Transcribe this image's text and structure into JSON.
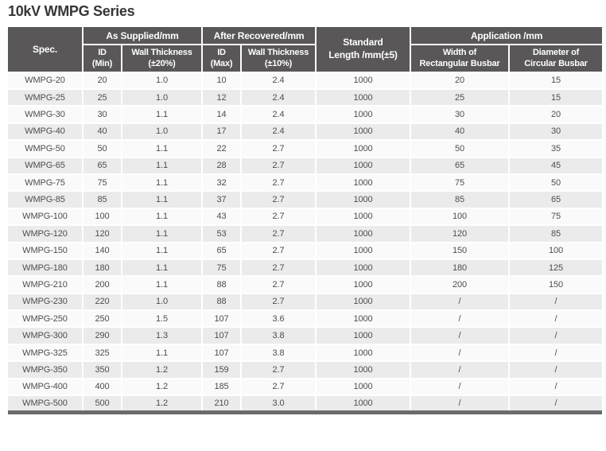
{
  "title": "10kV WMPG Series",
  "colors": {
    "header_background": "#595757",
    "header_text": "#ffffff",
    "row_base": "#fafafa",
    "row_alternate": "#ebebeb",
    "body_text": "#4d4d4d",
    "bottom_bar": "#6b6b6b",
    "title_text": "#363636"
  },
  "table": {
    "header": {
      "spec": "Spec.",
      "as_supplied": "As Supplied/mm",
      "after_recovered": "After Recovered/mm",
      "standard_line1": "Standard",
      "standard_line2": "Length /mm(±5)",
      "application": "Application /mm",
      "id_min_line1": "ID",
      "id_min_line2": "(Min)",
      "wall20_line1": "Wall Thickness",
      "wall20_line2": "(±20%)",
      "id_max_line1": "ID",
      "id_max_line2": "(Max)",
      "wall10_line1": "Wall Thickness",
      "wall10_line2": "(±10%)",
      "width_line1": "Width of",
      "width_line2": "Rectangular Busbar",
      "diameter_line1": "Diameter of",
      "diameter_line2": "Circular Busbar"
    },
    "rows": [
      {
        "spec": "WMPG-20",
        "id_min": "20",
        "wall_20": "1.0",
        "id_max": "10",
        "wall_10": "2.4",
        "std_length": "1000",
        "rect_width": "20",
        "circ_diameter": "15"
      },
      {
        "spec": "WMPG-25",
        "id_min": "25",
        "wall_20": "1.0",
        "id_max": "12",
        "wall_10": "2.4",
        "std_length": "1000",
        "rect_width": "25",
        "circ_diameter": "15"
      },
      {
        "spec": "WMPG-30",
        "id_min": "30",
        "wall_20": "1.1",
        "id_max": "14",
        "wall_10": "2.4",
        "std_length": "1000",
        "rect_width": "30",
        "circ_diameter": "20"
      },
      {
        "spec": "WMPG-40",
        "id_min": "40",
        "wall_20": "1.0",
        "id_max": "17",
        "wall_10": "2.4",
        "std_length": "1000",
        "rect_width": "40",
        "circ_diameter": "30"
      },
      {
        "spec": "WMPG-50",
        "id_min": "50",
        "wall_20": "1.1",
        "id_max": "22",
        "wall_10": "2.7",
        "std_length": "1000",
        "rect_width": "50",
        "circ_diameter": "35"
      },
      {
        "spec": "WMPG-65",
        "id_min": "65",
        "wall_20": "1.1",
        "id_max": "28",
        "wall_10": "2.7",
        "std_length": "1000",
        "rect_width": "65",
        "circ_diameter": "45"
      },
      {
        "spec": "WMPG-75",
        "id_min": "75",
        "wall_20": "1.1",
        "id_max": "32",
        "wall_10": "2.7",
        "std_length": "1000",
        "rect_width": "75",
        "circ_diameter": "50"
      },
      {
        "spec": "WMPG-85",
        "id_min": "85",
        "wall_20": "1.1",
        "id_max": "37",
        "wall_10": "2.7",
        "std_length": "1000",
        "rect_width": "85",
        "circ_diameter": "65"
      },
      {
        "spec": "WMPG-100",
        "id_min": "100",
        "wall_20": "1.1",
        "id_max": "43",
        "wall_10": "2.7",
        "std_length": "1000",
        "rect_width": "100",
        "circ_diameter": "75"
      },
      {
        "spec": "WMPG-120",
        "id_min": "120",
        "wall_20": "1.1",
        "id_max": "53",
        "wall_10": "2.7",
        "std_length": "1000",
        "rect_width": "120",
        "circ_diameter": "85"
      },
      {
        "spec": "WMPG-150",
        "id_min": "140",
        "wall_20": "1.1",
        "id_max": "65",
        "wall_10": "2.7",
        "std_length": "1000",
        "rect_width": "150",
        "circ_diameter": "100"
      },
      {
        "spec": "WMPG-180",
        "id_min": "180",
        "wall_20": "1.1",
        "id_max": "75",
        "wall_10": "2.7",
        "std_length": "1000",
        "rect_width": "180",
        "circ_diameter": "125"
      },
      {
        "spec": "WMPG-210",
        "id_min": "200",
        "wall_20": "1.1",
        "id_max": "88",
        "wall_10": "2.7",
        "std_length": "1000",
        "rect_width": "200",
        "circ_diameter": "150"
      },
      {
        "spec": "WMPG-230",
        "id_min": "220",
        "wall_20": "1.0",
        "id_max": "88",
        "wall_10": "2.7",
        "std_length": "1000",
        "rect_width": "/",
        "circ_diameter": "/"
      },
      {
        "spec": "WMPG-250",
        "id_min": "250",
        "wall_20": "1.5",
        "id_max": "107",
        "wall_10": "3.6",
        "std_length": "1000",
        "rect_width": "/",
        "circ_diameter": "/"
      },
      {
        "spec": "WMPG-300",
        "id_min": "290",
        "wall_20": "1.3",
        "id_max": "107",
        "wall_10": "3.8",
        "std_length": "1000",
        "rect_width": "/",
        "circ_diameter": "/"
      },
      {
        "spec": "WMPG-325",
        "id_min": "325",
        "wall_20": "1.1",
        "id_max": "107",
        "wall_10": "3.8",
        "std_length": "1000",
        "rect_width": "/",
        "circ_diameter": "/"
      },
      {
        "spec": "WMPG-350",
        "id_min": "350",
        "wall_20": "1.2",
        "id_max": "159",
        "wall_10": "2.7",
        "std_length": "1000",
        "rect_width": "/",
        "circ_diameter": "/"
      },
      {
        "spec": "WMPG-400",
        "id_min": "400",
        "wall_20": "1.2",
        "id_max": "185",
        "wall_10": "2.7",
        "std_length": "1000",
        "rect_width": "/",
        "circ_diameter": "/"
      },
      {
        "spec": "WMPG-500",
        "id_min": "500",
        "wall_20": "1.2",
        "id_max": "210",
        "wall_10": "3.0",
        "std_length": "1000",
        "rect_width": "/",
        "circ_diameter": "/"
      }
    ]
  }
}
